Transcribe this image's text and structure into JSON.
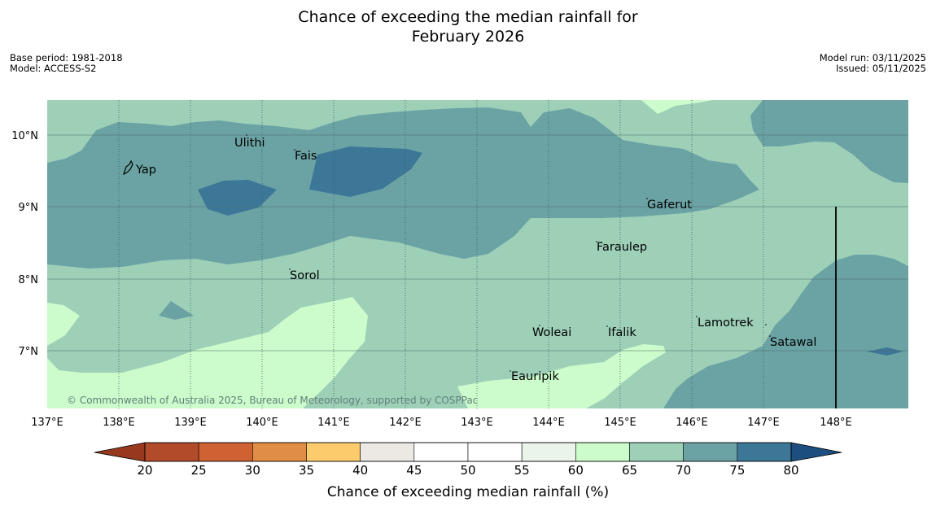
{
  "title_line1": "Chance of exceeding the median rainfall for",
  "title_line2": "February 2026",
  "left_info": {
    "base_period": "Base period: 1981-2018",
    "model": "Model: ACCESS-S2"
  },
  "right_info": {
    "model_run": "Model run: 03/11/2025",
    "issued": "Issued: 05/11/2025"
  },
  "map": {
    "lon_ticks": [
      "137°E",
      "138°E",
      "139°E",
      "140°E",
      "141°E",
      "142°E",
      "143°E",
      "144°E",
      "145°E",
      "146°E",
      "147°E",
      "148°E"
    ],
    "lat_ticks": [
      "10°N",
      "9°N",
      "8°N",
      "7°N"
    ],
    "places": [
      "Ulithi",
      "Fais",
      "Yap",
      "Gaferut",
      "Faraulep",
      "Sorol",
      "Woleai",
      "Ifalik",
      "Lamotrek",
      "Satawal",
      "Eauripik"
    ],
    "credit": "© Commonwealth of Australia 2025, Bureau of Meteorology, supported by COSPPac",
    "colors": {
      "c60_65": "#ccfccb",
      "c65_70": "#9ed0b8",
      "c70_75": "#6ba3a5",
      "c75_80": "#3d7798"
    }
  },
  "colorbar": {
    "labels": [
      "20",
      "25",
      "30",
      "35",
      "40",
      "45",
      "50",
      "55",
      "60",
      "65",
      "70",
      "75",
      "80"
    ],
    "colors": [
      "#b14b2a",
      "#cf6232",
      "#e08d45",
      "#fccb6c",
      "#ece9e4",
      "#ffffff",
      "#ffffff",
      "#eaf4ea",
      "#ccfccb",
      "#9ed0b8",
      "#6ba3a5",
      "#3d7798"
    ],
    "under_color": "#97391f",
    "over_color": "#1c4f7f",
    "title": "Chance of exceeding median rainfall (%)"
  }
}
